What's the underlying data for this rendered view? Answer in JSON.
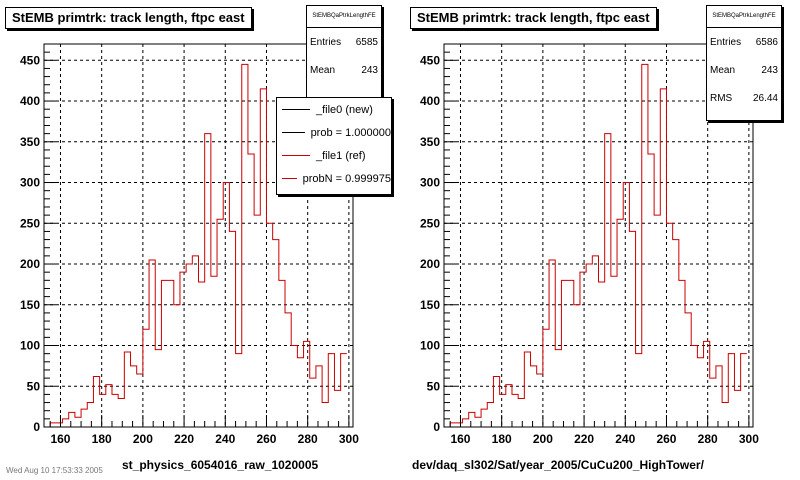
{
  "chart_data": [
    {
      "type": "bar",
      "title": "StEMB primtrk: track length, ftpc east",
      "xlabel": "st_physics_6054016_raw_1020005",
      "ylabel": "",
      "xlim": [
        152,
        302
      ],
      "ylim": [
        0,
        470
      ],
      "xticks": [
        160,
        180,
        200,
        220,
        240,
        260,
        280,
        300
      ],
      "yticks": [
        0,
        50,
        100,
        150,
        200,
        250,
        300,
        350,
        400,
        450
      ],
      "grid": true,
      "bin_start": 152,
      "bin_width": 3,
      "series": [
        {
          "name": "_file1 (ref)",
          "color": "#cc0000",
          "values": [
            0,
            5,
            5,
            10,
            18,
            12,
            22,
            30,
            62,
            40,
            52,
            40,
            35,
            92,
            75,
            65,
            120,
            205,
            95,
            180,
            180,
            150,
            190,
            200,
            210,
            178,
            360,
            185,
            255,
            300,
            240,
            90,
            445,
            335,
            260,
            415,
            250,
            230,
            180,
            140,
            100,
            85,
            105,
            60,
            75,
            30,
            90,
            45,
            90
          ]
        }
      ],
      "stats": {
        "name": "StEMBQaPtrkLengthFE",
        "entries": "6585",
        "mean": "243",
        "rms": ""
      },
      "legend": [
        {
          "label": "_file0 (new)",
          "color": "#000000"
        },
        {
          "label": "prob = 1.000000",
          "color": "#000000"
        },
        {
          "label": "_file1 (ref)",
          "color": "#cc0000"
        },
        {
          "label": "probN = 0.999975",
          "color": "#cc0000"
        }
      ],
      "footer": "Wed Aug 10 17:53:33 2005"
    },
    {
      "type": "bar",
      "title": "StEMB primtrk: track length, ftpc east",
      "xlabel": "dev/daq_sl302/Sat/year_2005/CuCu200_HighTower/",
      "ylabel": "",
      "xlim": [
        152,
        302
      ],
      "ylim": [
        0,
        470
      ],
      "xticks": [
        160,
        180,
        200,
        220,
        240,
        260,
        280,
        300
      ],
      "yticks": [
        0,
        50,
        100,
        150,
        200,
        250,
        300,
        350,
        400,
        450
      ],
      "grid": true,
      "bin_start": 152,
      "bin_width": 3,
      "series": [
        {
          "name": "",
          "color": "#cc0000",
          "values": [
            0,
            5,
            5,
            10,
            18,
            12,
            22,
            30,
            62,
            40,
            52,
            40,
            35,
            92,
            75,
            65,
            120,
            205,
            95,
            180,
            180,
            150,
            190,
            200,
            210,
            178,
            360,
            185,
            255,
            300,
            240,
            90,
            445,
            335,
            260,
            415,
            250,
            230,
            180,
            140,
            100,
            85,
            105,
            60,
            75,
            30,
            90,
            45,
            90
          ]
        }
      ],
      "stats": {
        "name": "StEMBQaPtrkLengthFE",
        "entries": "6586",
        "mean": "243",
        "rms": "26.44"
      }
    }
  ]
}
